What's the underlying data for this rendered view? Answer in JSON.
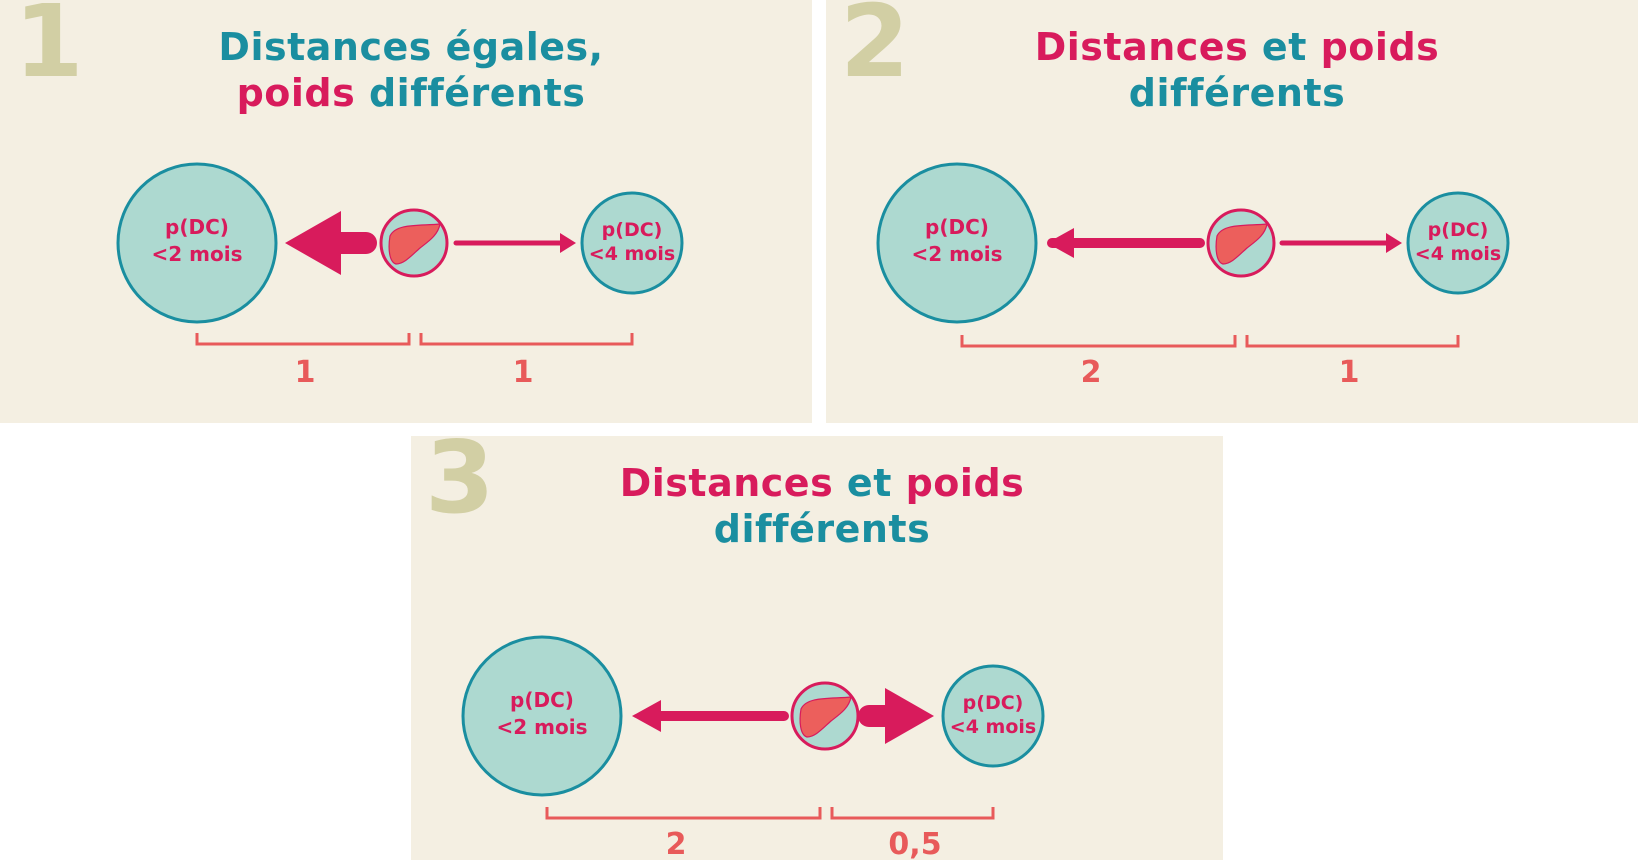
{
  "colors": {
    "panel_bg": "#f4efe2",
    "number": "#d2cfa4",
    "teal": "#1a8ea0",
    "pink": "#d81b5c",
    "circle_fill": "#add9d0",
    "coral": "#e85a5a",
    "liver": "#ec5f5c"
  },
  "icons": {
    "organ": "liver-icon"
  },
  "panels": [
    {
      "number": "1",
      "title": {
        "line1": [
          {
            "text": "Distances égales,",
            "color": "teal"
          }
        ],
        "line2": [
          {
            "text": "poids",
            "color": "pink"
          },
          {
            "text": " différents",
            "color": "teal"
          }
        ]
      },
      "left_label": {
        "line1": "p(DC)",
        "line2": "<2 mois"
      },
      "right_label": {
        "line1": "p(DC)",
        "line2": "<4 mois"
      },
      "distance_left": "1",
      "distance_right": "1"
    },
    {
      "number": "2",
      "title": {
        "line1": [
          {
            "text": "Distances",
            "color": "pink"
          },
          {
            "text": " et ",
            "color": "teal"
          },
          {
            "text": "poids",
            "color": "pink"
          }
        ],
        "line2": [
          {
            "text": "différents",
            "color": "teal"
          }
        ]
      },
      "left_label": {
        "line1": "p(DC)",
        "line2": "<2 mois"
      },
      "right_label": {
        "line1": "p(DC)",
        "line2": "<4 mois"
      },
      "distance_left": "2",
      "distance_right": "1"
    },
    {
      "number": "3",
      "title": {
        "line1": [
          {
            "text": "Distances",
            "color": "pink"
          },
          {
            "text": " et ",
            "color": "teal"
          },
          {
            "text": "poids",
            "color": "pink"
          }
        ],
        "line2": [
          {
            "text": "différents",
            "color": "teal"
          }
        ]
      },
      "left_label": {
        "line1": "p(DC)",
        "line2": "<2 mois"
      },
      "right_label": {
        "line1": "p(DC)",
        "line2": "<4 mois"
      },
      "distance_left": "2",
      "distance_right": "0,5"
    }
  ]
}
